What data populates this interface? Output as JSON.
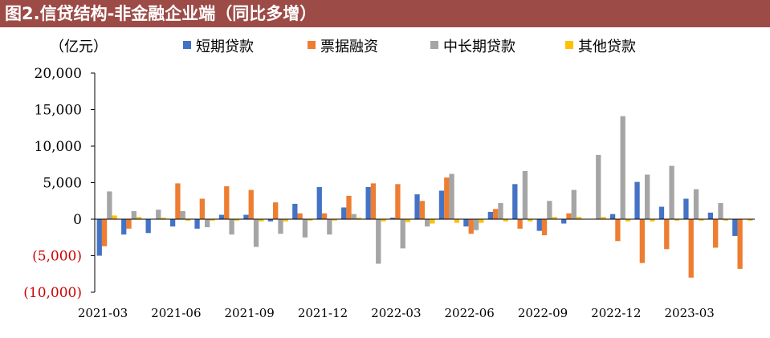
{
  "title": "图2.信贷结构-非金融企业端（同比多增）",
  "unit_label": "（亿元）",
  "chart_data": {
    "type": "bar",
    "title": "图2.信贷结构-非金融企业端（同比多增）",
    "ylabel": "（亿元）",
    "xlabel": "",
    "ylim": [
      -10000,
      20000
    ],
    "yticks": [
      20000,
      15000,
      10000,
      5000,
      0,
      -5000,
      -10000
    ],
    "ytick_labels": [
      "20,000",
      "15,000",
      "10,000",
      "5,000",
      "0",
      "(5,000)",
      "(10,000)"
    ],
    "negative_label_color": "#cc0000",
    "grid": false,
    "legend_position": "top",
    "categories": [
      "2021-03",
      "2021-04",
      "2021-05",
      "2021-06",
      "2021-07",
      "2021-08",
      "2021-09",
      "2021-10",
      "2021-11",
      "2021-12",
      "2022-01",
      "2022-02",
      "2022-03",
      "2022-04",
      "2022-05",
      "2022-06",
      "2022-07",
      "2022-08",
      "2022-09",
      "2022-10",
      "2022-11",
      "2022-12",
      "2023-01",
      "2023-02",
      "2023-03",
      "2023-04",
      "2023-05"
    ],
    "x_tick_labels": [
      "2021-03",
      "",
      "",
      "2021-06",
      "",
      "",
      "2021-09",
      "",
      "",
      "2021-12",
      "",
      "",
      "2022-03",
      "",
      "",
      "2022-06",
      "",
      "",
      "2022-09",
      "",
      "",
      "2022-12",
      "",
      "",
      "2023-03",
      "",
      ""
    ],
    "series": [
      {
        "name": "短期贷款",
        "color": "#4472c4",
        "values": [
          -5000,
          -2100,
          -1900,
          -1000,
          -1300,
          600,
          600,
          -300,
          2100,
          4400,
          1600,
          4400,
          200,
          3400,
          3900,
          -1000,
          1000,
          4800,
          -1600,
          -600,
          0,
          700,
          5100,
          1700,
          2800,
          900,
          -2300
        ]
      },
      {
        "name": "票据融资",
        "color": "#ed7d31",
        "values": [
          -3700,
          -1300,
          0,
          4900,
          2800,
          4500,
          4000,
          2300,
          800,
          800,
          3200,
          4900,
          4800,
          2500,
          5700,
          -2000,
          1400,
          -1300,
          -2200,
          800,
          0,
          -3000,
          -6000,
          -4100,
          -8000,
          -3900,
          -6800
        ]
      },
      {
        "name": "中长期贷款",
        "color": "#a5a5a5",
        "values": [
          3800,
          1100,
          1300,
          1100,
          -1100,
          -2100,
          -3800,
          -2000,
          -2500,
          -2100,
          700,
          -6100,
          -4000,
          -1000,
          6200,
          -1500,
          2200,
          6600,
          2500,
          4000,
          8800,
          14100,
          6100,
          7300,
          4100,
          2200,
          0
        ]
      },
      {
        "name": "其他贷款",
        "color": "#ffc000",
        "values": [
          500,
          300,
          200,
          -200,
          -200,
          -200,
          -300,
          -300,
          -200,
          -200,
          200,
          -300,
          -400,
          -600,
          -500,
          -500,
          -300,
          -300,
          300,
          300,
          300,
          -300,
          -300,
          -200,
          -200,
          -200,
          -200
        ]
      }
    ]
  }
}
